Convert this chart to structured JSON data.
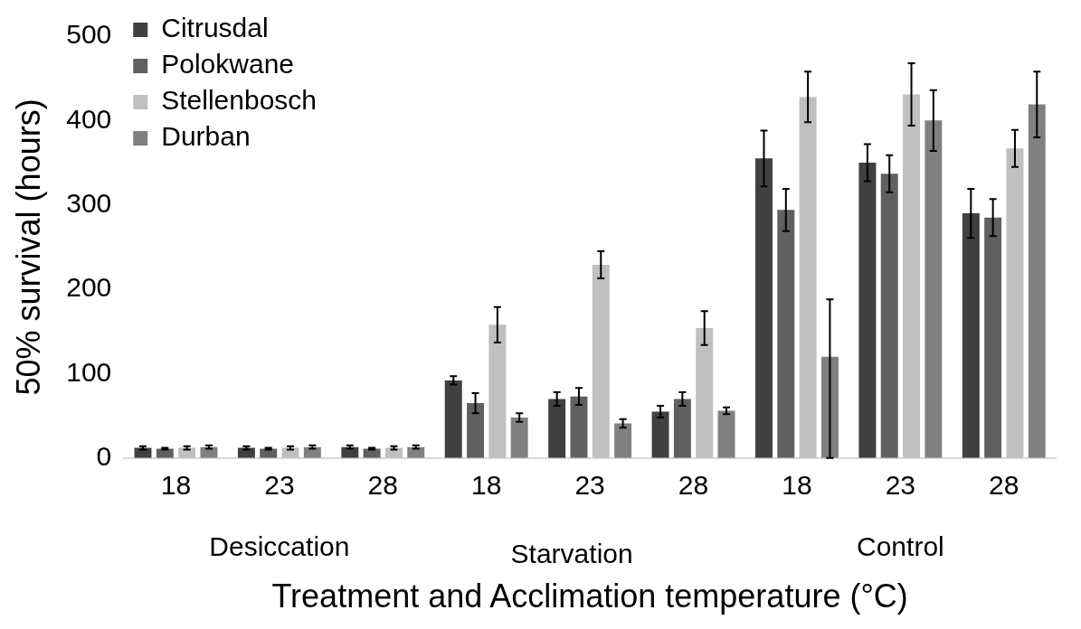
{
  "chart_data": {
    "type": "bar",
    "xlabel": "Treatment and Acclimation temperature (°C)",
    "ylabel": "50% survival (hours)",
    "categories": [
      "18",
      "23",
      "28",
      "18",
      "23",
      "28",
      "18",
      "23",
      "28"
    ],
    "annotations": [
      "Desiccation",
      "Starvation",
      "Control"
    ],
    "series": [
      {
        "name": "Citrusdal",
        "color": "#404040",
        "values": [
          12,
          12,
          13,
          92,
          70,
          55,
          355,
          350,
          290
        ],
        "errors": [
          2,
          2,
          2,
          5,
          8,
          7,
          33,
          22,
          29
        ]
      },
      {
        "name": "Polokwane",
        "color": "#606060",
        "values": [
          11,
          11,
          11,
          65,
          73,
          70,
          294,
          337,
          285
        ],
        "errors": [
          1,
          1,
          1,
          12,
          10,
          8,
          25,
          22,
          22
        ]
      },
      {
        "name": "Stellenbosch",
        "color": "#c0c0c0",
        "values": [
          12,
          12,
          12,
          158,
          229,
          154,
          428,
          431,
          367
        ],
        "errors": [
          2,
          2,
          2,
          21,
          16,
          20,
          30,
          37,
          22
        ]
      },
      {
        "name": "Durban",
        "color": "#808080",
        "values": [
          13,
          13,
          13,
          48,
          41,
          56,
          120,
          400,
          419
        ],
        "errors": [
          2,
          2,
          2,
          5,
          5,
          4,
          [
            0,
            188
          ],
          36,
          39
        ]
      }
    ],
    "ylim": [
      0,
      500
    ],
    "yticks": [
      0,
      100,
      200,
      300,
      400,
      500
    ],
    "grid": false,
    "legend": "top left"
  }
}
